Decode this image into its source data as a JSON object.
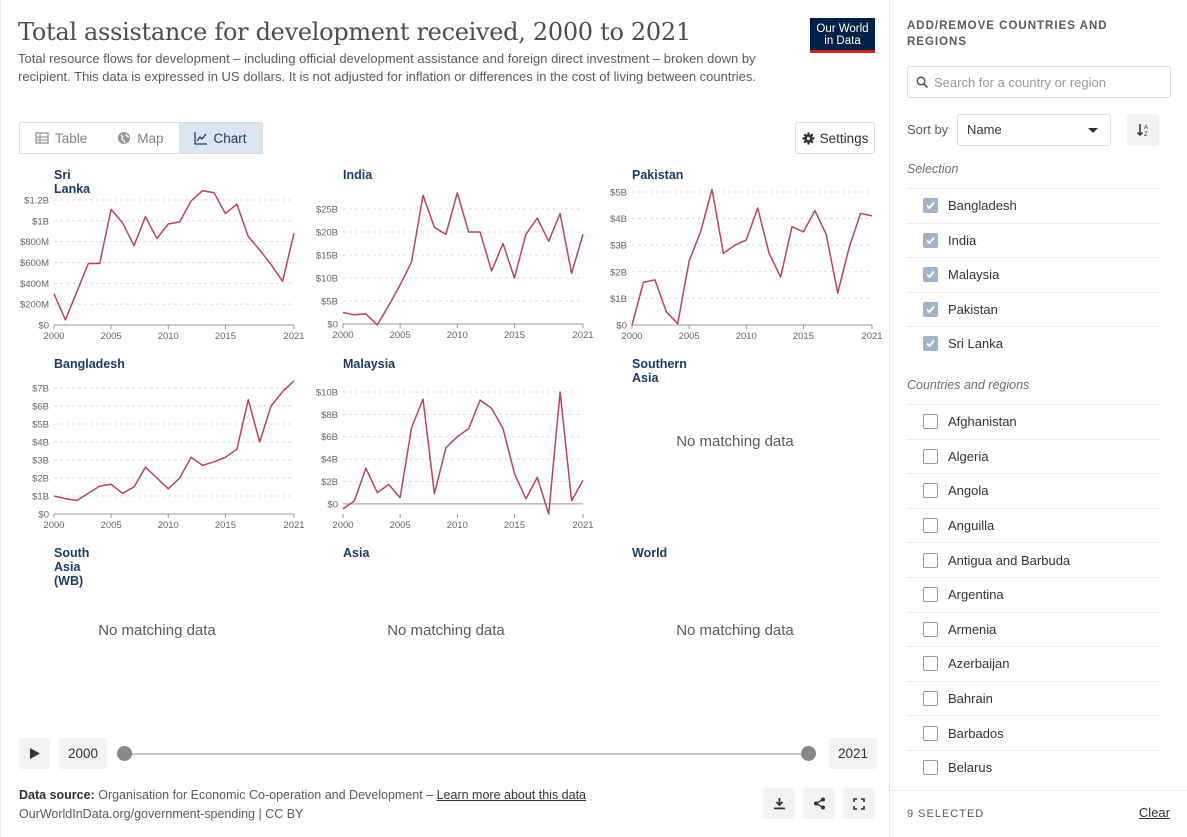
{
  "header": {
    "title": "Total assistance for development received, 2000 to 2021",
    "subtitle": "Total resource flows for development – including official development assistance and foreign direct investment – broken down by recipient. This data is expressed in US dollars. It is not adjusted for inflation or differences in the cost of living between countries.",
    "logo_line1": "Our World",
    "logo_line2": "in Data"
  },
  "tabs": [
    {
      "label": "Table",
      "icon": "table-icon"
    },
    {
      "label": "Map",
      "icon": "globe-icon"
    },
    {
      "label": "Chart",
      "icon": "line-chart-icon",
      "active": true
    }
  ],
  "settings_label": "Settings",
  "no_data_text": "No matching data",
  "line_color": "#b9455a",
  "chart_data": [
    {
      "type": "line",
      "title": "Sri Lanka",
      "x": [
        2000,
        2001,
        2002,
        2003,
        2004,
        2005,
        2006,
        2007,
        2008,
        2009,
        2010,
        2011,
        2012,
        2013,
        2014,
        2015,
        2016,
        2017,
        2018,
        2019,
        2020,
        2021
      ],
      "values": [
        300,
        50,
        320,
        590,
        590,
        1110,
        980,
        760,
        1040,
        830,
        970,
        990,
        1190,
        1290,
        1270,
        1070,
        1160,
        850,
        720,
        580,
        420,
        880
      ],
      "unit": "M",
      "yticks": [
        "$0",
        "$200M",
        "$400M",
        "$600M",
        "$800M",
        "$1B",
        "$1.2B"
      ],
      "ylim": [
        0,
        1200
      ],
      "xticks": [
        "2000",
        "2005",
        "2010",
        "2015",
        "2021"
      ]
    },
    {
      "type": "line",
      "title": "India",
      "x": [
        2000,
        2001,
        2002,
        2003,
        2004,
        2005,
        2006,
        2007,
        2008,
        2009,
        2010,
        2011,
        2012,
        2013,
        2014,
        2015,
        2016,
        2017,
        2018,
        2019,
        2020,
        2021
      ],
      "values": [
        2.5,
        2,
        2.2,
        -0.2,
        4,
        8.5,
        13.5,
        28,
        21,
        19.5,
        28.5,
        20,
        20,
        11.5,
        17.5,
        10,
        19.5,
        23,
        18,
        24,
        11,
        19.5
      ],
      "unit": "B",
      "yticks": [
        "$0",
        "$5B",
        "$10B",
        "$15B",
        "$20B",
        "$25B"
      ],
      "ylim": [
        0,
        25
      ],
      "xticks": [
        "2000",
        "2005",
        "2010",
        "2015",
        "2021"
      ]
    },
    {
      "type": "line",
      "title": "Pakistan",
      "x": [
        2000,
        2001,
        2002,
        2003,
        2004,
        2005,
        2006,
        2007,
        2008,
        2009,
        2010,
        2011,
        2012,
        2013,
        2014,
        2015,
        2016,
        2017,
        2018,
        2019,
        2020,
        2021
      ],
      "values": [
        0,
        1.6,
        1.7,
        0.5,
        0.05,
        2.4,
        3.5,
        5.1,
        2.7,
        3,
        3.2,
        4.4,
        2.7,
        1.8,
        3.7,
        3.5,
        4.3,
        3.4,
        1.2,
        2.9,
        4.2,
        4.1
      ],
      "unit": "B",
      "yticks": [
        "$0",
        "$1B",
        "$2B",
        "$3B",
        "$4B",
        "$5B"
      ],
      "ylim": [
        0,
        5
      ],
      "xticks": [
        "2000",
        "2005",
        "2010",
        "2015",
        "2021"
      ]
    },
    {
      "type": "line",
      "title": "Bangladesh",
      "x": [
        2000,
        2001,
        2002,
        2003,
        2004,
        2005,
        2006,
        2007,
        2008,
        2009,
        2010,
        2011,
        2012,
        2013,
        2014,
        2015,
        2016,
        2017,
        2018,
        2019,
        2020,
        2021
      ],
      "values": [
        1,
        0.85,
        0.75,
        1.15,
        1.55,
        1.65,
        1.15,
        1.5,
        2.6,
        2,
        1.4,
        2,
        3.15,
        2.7,
        2.9,
        3.15,
        3.6,
        6.35,
        4,
        6,
        6.8,
        7.4
      ],
      "unit": "B",
      "yticks": [
        "$0",
        "$1B",
        "$2B",
        "$3B",
        "$4B",
        "$5B",
        "$6B",
        "$7B"
      ],
      "ylim": [
        0,
        7
      ],
      "xticks": [
        "2000",
        "2005",
        "2010",
        "2015",
        "2021"
      ]
    },
    {
      "type": "line",
      "title": "Malaysia",
      "x": [
        2000,
        2001,
        2002,
        2003,
        2004,
        2005,
        2006,
        2007,
        2008,
        2009,
        2010,
        2011,
        2012,
        2013,
        2014,
        2015,
        2016,
        2017,
        2018,
        2019,
        2020,
        2021
      ],
      "values": [
        -0.5,
        0.3,
        3.5,
        1.1,
        1.9,
        0.6,
        7.5,
        10.3,
        1,
        5.5,
        6.6,
        7.4,
        10.2,
        9.4,
        7.4,
        3,
        0.5,
        2.6,
        -1,
        11,
        0.3,
        2.3
      ],
      "unit": "B",
      "yticks": [
        "$0",
        "$2B",
        "$4B",
        "$6B",
        "$8B",
        "$10B"
      ],
      "ylim": [
        -1,
        11
      ],
      "xticks": [
        "2000",
        "2005",
        "2010",
        "2015",
        "2021"
      ]
    },
    {
      "type": "line",
      "title": "Southern Asia",
      "values": []
    },
    {
      "type": "line",
      "title": "South Asia (WB)",
      "values": []
    },
    {
      "type": "line",
      "title": "Asia",
      "values": []
    },
    {
      "type": "line",
      "title": "World",
      "values": []
    }
  ],
  "timeline": {
    "start": "2000",
    "end": "2021"
  },
  "footer": {
    "source_label": "Data source:",
    "source_text": "Organisation for Economic Co-operation and Development –",
    "learn_more": "Learn more about this data",
    "url_line": "OurWorldInData.org/government-spending | CC BY"
  },
  "sidebar": {
    "heading": "ADD/REMOVE COUNTRIES AND REGIONS",
    "search_placeholder": "Search for a country or region",
    "sort_label": "Sort by",
    "sort_value": "Name",
    "selection_label": "Selection",
    "selected": [
      "Bangladesh",
      "India",
      "Malaysia",
      "Pakistan",
      "Sri Lanka"
    ],
    "others_label": "Countries and regions",
    "others": [
      "Afghanistan",
      "Algeria",
      "Angola",
      "Anguilla",
      "Antigua and Barbuda",
      "Argentina",
      "Armenia",
      "Azerbaijan",
      "Bahrain",
      "Barbados",
      "Belarus"
    ],
    "selected_count": "9 SELECTED",
    "clear_label": "Clear"
  }
}
